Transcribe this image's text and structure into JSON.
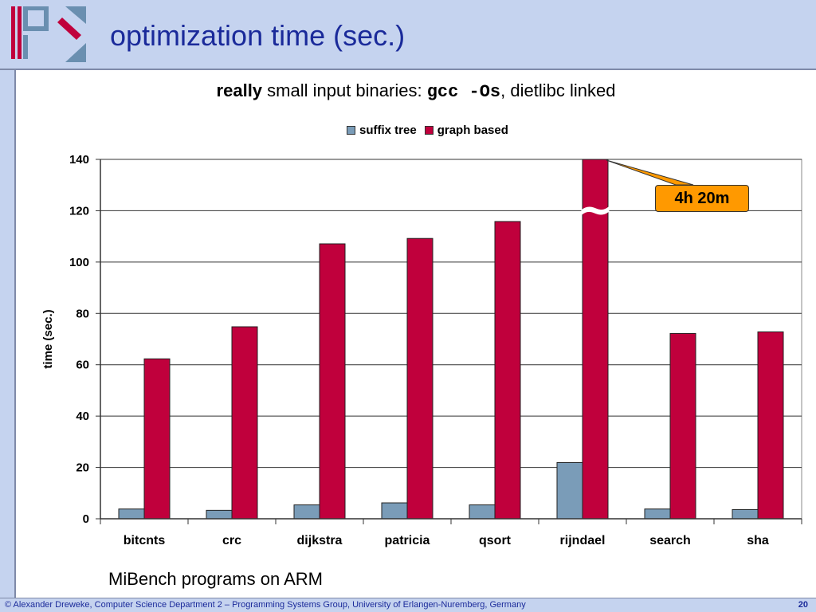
{
  "slide": {
    "title": "optimization time (sec.)",
    "subtitle_bold": "really",
    "subtitle_text": " small input binaries: ",
    "subtitle_code": "gcc -Os",
    "subtitle_tail": ", dietlibc linked",
    "caption": "MiBench programs on ARM",
    "footer": "© Alexander Dreweke, Computer Science Department 2 – Programming Systems Group, University of Erlangen-Nuremberg, Germany",
    "page_number": "20"
  },
  "colors": {
    "suffix_tree": "#7a9cb8",
    "graph_based": "#c0003c",
    "callout": "#ff9900"
  },
  "chart_data": {
    "type": "bar",
    "categories": [
      "bitcnts",
      "crc",
      "dijkstra",
      "patricia",
      "qsort",
      "rijndael",
      "search",
      "sha"
    ],
    "series": [
      {
        "name": "suffix tree",
        "values": [
          3.8,
          3.3,
          5.4,
          6.2,
          5.4,
          21.9,
          3.8,
          3.6
        ]
      },
      {
        "name": "graph based",
        "values": [
          62.3,
          74.8,
          107.1,
          109.2,
          115.8,
          140,
          72.2,
          72.8
        ]
      }
    ],
    "ylabel": "time (sec.)",
    "ylim": [
      0,
      140
    ],
    "yticks": [
      0,
      20,
      40,
      60,
      80,
      100,
      120,
      140
    ],
    "legend": "top-center",
    "break_marker": "~",
    "annotation": "4h 20m"
  }
}
